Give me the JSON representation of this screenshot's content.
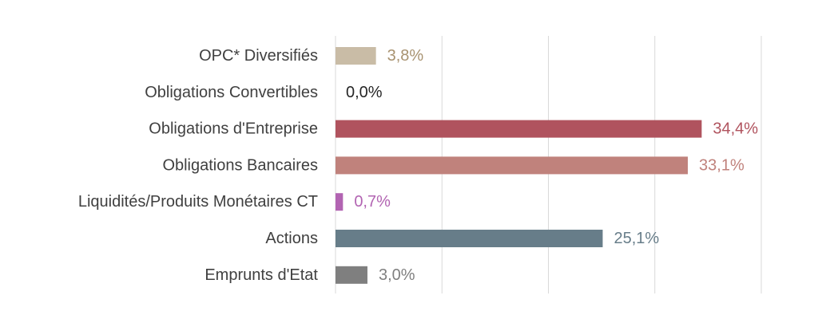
{
  "chart_data": {
    "type": "bar",
    "orientation": "horizontal",
    "title": "",
    "xlabel": "",
    "ylabel": "",
    "xlim": [
      0,
      40
    ],
    "grid": true,
    "legend": "none",
    "categories": [
      "OPC* Diversifiés",
      "Obligations Convertibles",
      "Obligations d'Entreprise",
      "Obligations Bancaires",
      "Liquidités/Produits Monétaires CT",
      "Actions",
      "Emprunts d'Etat"
    ],
    "values": [
      3.8,
      0.0,
      34.4,
      33.1,
      0.7,
      25.1,
      3.0
    ],
    "data_labels": [
      "3,8%",
      "0,0%",
      "34,4%",
      "33,1%",
      "0,7%",
      "25,1%",
      "3,0%"
    ],
    "bar_colors": [
      "#c9bca6",
      "#c9bca6",
      "#b0535e",
      "#c0827c",
      "#b264b2",
      "#677d89",
      "#7f7f7f"
    ],
    "label_colors": [
      "#a89270",
      "#262626",
      "#b0535e",
      "#c0827c",
      "#b264b2",
      "#677d89",
      "#7f7f7f"
    ]
  }
}
